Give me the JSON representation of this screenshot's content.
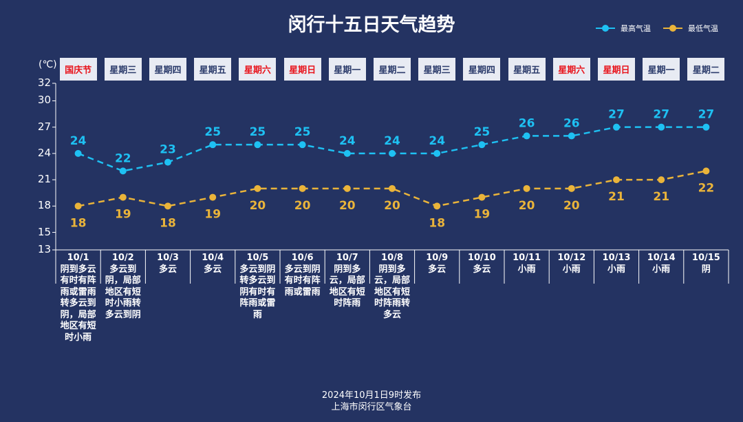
{
  "title": "闵行十五日天气趋势",
  "legend": {
    "high": "最高气温",
    "low": "最低气温"
  },
  "unit": "(℃)",
  "colors": {
    "high": "#1ec1f3",
    "low": "#eab43a",
    "bg": "#243362",
    "weekend": "#e8141c"
  },
  "footer": {
    "line1": "2024年10月1日9时发布",
    "line2": "上海市闵行区气象台"
  },
  "chart_data": {
    "type": "line",
    "title": "闵行十五日天气趋势",
    "ylabel": "(℃)",
    "ylim": [
      13,
      32
    ],
    "yticks": [
      13,
      15,
      18,
      21,
      24,
      27,
      30,
      32
    ],
    "categories": [
      "10/1",
      "10/2",
      "10/3",
      "10/4",
      "10/5",
      "10/6",
      "10/7",
      "10/8",
      "10/9",
      "10/10",
      "10/11",
      "10/12",
      "10/13",
      "10/14",
      "10/15"
    ],
    "weekdays": [
      "国庆节",
      "星期三",
      "星期四",
      "星期五",
      "星期六",
      "星期日",
      "星期一",
      "星期二",
      "星期三",
      "星期四",
      "星期五",
      "星期六",
      "星期日",
      "星期一",
      "星期二"
    ],
    "weekday_red": [
      true,
      false,
      false,
      false,
      true,
      true,
      false,
      false,
      false,
      false,
      false,
      true,
      true,
      false,
      false
    ],
    "weather": [
      "阴到多云有时有阵雨或雷雨转多云到阴，局部地区有短时小雨",
      "多云到阴，局部地区有短时小雨转多云到阴",
      "多云",
      "多云",
      "多云到阴转多云到阴有时有阵雨或雷雨",
      "多云到阴有时有阵雨或雷雨",
      "阴到多云，局部地区有短时阵雨",
      "阴到多云，局部地区有短时阵雨转多云",
      "多云",
      "多云",
      "小雨",
      "小雨",
      "小雨",
      "小雨",
      "阴"
    ],
    "series": [
      {
        "name": "最高气温",
        "values": [
          24,
          22,
          23,
          25,
          25,
          25,
          24,
          24,
          24,
          25,
          26,
          26,
          27,
          27,
          27
        ]
      },
      {
        "name": "最低气温",
        "values": [
          18,
          19,
          18,
          19,
          20,
          20,
          20,
          20,
          18,
          19,
          20,
          20,
          21,
          21,
          22
        ]
      }
    ],
    "legend_position": "top-right"
  }
}
